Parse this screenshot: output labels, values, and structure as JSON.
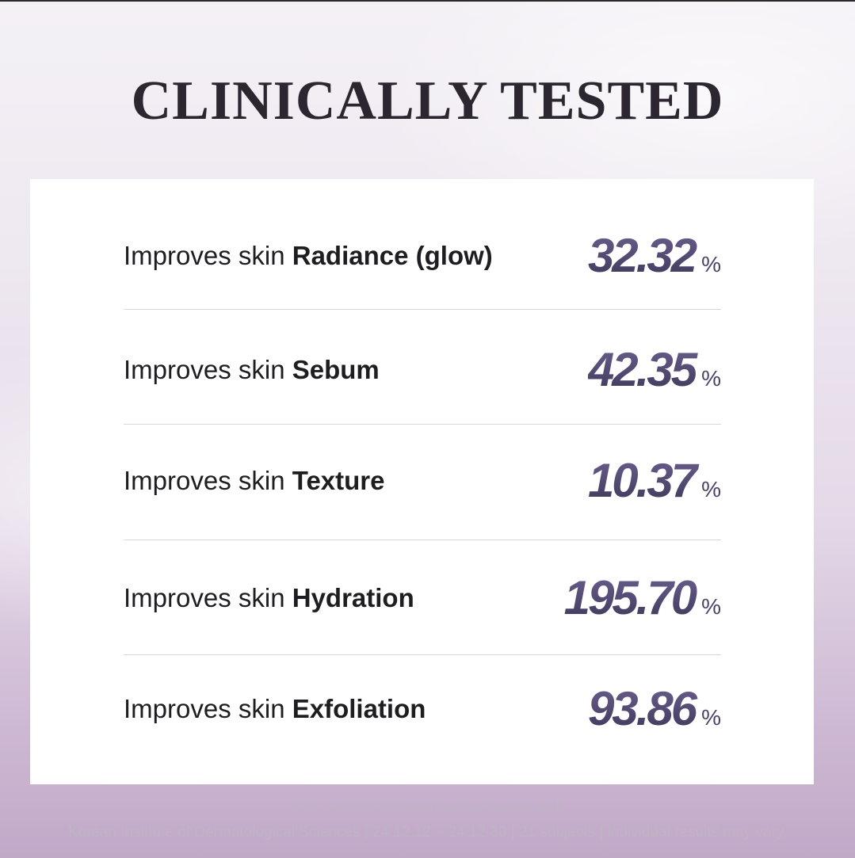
{
  "title": "CLINICALLY TESTED",
  "rows": [
    {
      "prefix": "Improves skin ",
      "bold": "Radiance (glow)",
      "value": "32.32",
      "unit": "%"
    },
    {
      "prefix": "Improves skin ",
      "bold": "Sebum",
      "value": "42.35",
      "unit": "%"
    },
    {
      "prefix": "Improves skin ",
      "bold": "Texture",
      "value": "10.37",
      "unit": "%"
    },
    {
      "prefix": "Improves skin ",
      "bold": "Hydration",
      "value": "195.70",
      "unit": "%"
    },
    {
      "prefix": "Improves skin ",
      "bold": "Exfoliation",
      "value": "93.86",
      "unit": "%"
    }
  ],
  "footer": {
    "line1": "Test result of improvement to human skin",
    "line2": "Korean Institute of Dermatological Sciences | 24.12.12 ~ 24.12.30 | 21 subjects | individual results may vary."
  },
  "colors": {
    "title": "#2c2630",
    "value": "#4a4266",
    "footer": "#bfb3c5"
  }
}
